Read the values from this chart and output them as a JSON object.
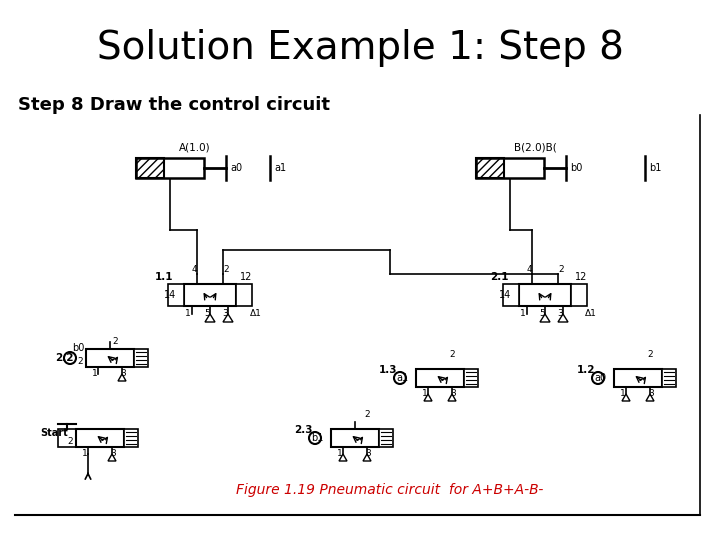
{
  "title": "Solution Example 1: Step 8",
  "subtitle": "Step 8 Draw the control circuit",
  "figure_caption": "Figure 1.19 Pneumatic circuit  for A+B+A-B-",
  "bg_color": "#ffffff",
  "title_fontsize": 28,
  "subtitle_fontsize": 13,
  "caption_color": "#cc0000",
  "caption_fontsize": 10
}
